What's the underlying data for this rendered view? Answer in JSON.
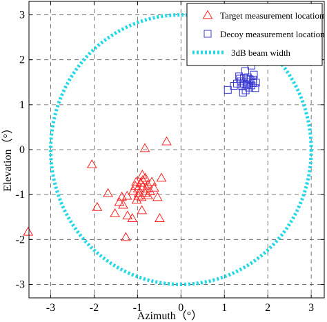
{
  "chart_data": {
    "type": "scatter",
    "title": "",
    "xlabel": "Azimuth（°）",
    "ylabel": "Elevation（°）",
    "xlim": [
      -3.5,
      3.3
    ],
    "ylim": [
      -3.3,
      3.3
    ],
    "xticks": [
      -3,
      -2,
      -1,
      0,
      1,
      2,
      3
    ],
    "yticks": [
      -3,
      -2,
      -1,
      0,
      1,
      2,
      3
    ],
    "grid": true,
    "grid_style": "dashed",
    "legend_position": "top-right",
    "series": [
      {
        "name": "Target measurement location",
        "marker": "triangle",
        "color": "#ff2020",
        "points": [
          [
            -3.52,
            -1.83
          ],
          [
            -2.05,
            -0.33
          ],
          [
            -1.68,
            -0.97
          ],
          [
            -1.93,
            -1.28
          ],
          [
            -1.42,
            -1.17
          ],
          [
            -1.52,
            -1.42
          ],
          [
            -1.33,
            -1.23
          ],
          [
            -1.27,
            -1.95
          ],
          [
            -1.23,
            -1.47
          ],
          [
            -1.12,
            -1.53
          ],
          [
            -1.24,
            -1.03
          ],
          [
            -1.02,
            -1.12
          ],
          [
            -1.1,
            -0.92
          ],
          [
            -0.99,
            -0.87
          ],
          [
            -0.93,
            -0.74
          ],
          [
            -0.87,
            -0.82
          ],
          [
            -0.82,
            -0.63
          ],
          [
            -0.89,
            -0.56
          ],
          [
            -0.76,
            -0.78
          ],
          [
            -0.71,
            -0.93
          ],
          [
            -0.76,
            -1.02
          ],
          [
            -0.91,
            -1.06
          ],
          [
            -0.98,
            -1.03
          ],
          [
            -1.05,
            -0.81
          ],
          [
            -0.82,
            -0.97
          ],
          [
            -0.88,
            -0.68
          ],
          [
            -0.67,
            -0.72
          ],
          [
            -0.62,
            -0.85
          ],
          [
            -0.45,
            -0.63
          ],
          [
            -0.54,
            -1.06
          ],
          [
            -0.9,
            -1.35
          ],
          [
            -0.49,
            -1.53
          ],
          [
            -0.83,
            0.03
          ],
          [
            -0.33,
            0.18
          ],
          [
            -0.97,
            -0.97
          ],
          [
            -1.03,
            -0.72
          ],
          [
            -0.79,
            -0.87
          ],
          [
            -1.36,
            -1.05
          ]
        ]
      },
      {
        "name": "Decoy measurement location",
        "marker": "square",
        "color": "#3838d0",
        "points": [
          [
            1.62,
            1.87
          ],
          [
            1.68,
            1.67
          ],
          [
            1.48,
            1.75
          ],
          [
            1.54,
            1.61
          ],
          [
            1.6,
            1.55
          ],
          [
            1.44,
            1.47
          ],
          [
            1.53,
            1.43
          ],
          [
            1.57,
            1.38
          ],
          [
            1.49,
            1.32
          ],
          [
            1.41,
            1.41
          ],
          [
            1.38,
            1.52
          ],
          [
            1.34,
            1.63
          ],
          [
            1.53,
            1.5
          ],
          [
            1.62,
            1.43
          ],
          [
            1.66,
            1.56
          ],
          [
            1.73,
            1.49
          ],
          [
            1.71,
            1.37
          ],
          [
            1.43,
            1.27
          ],
          [
            1.36,
            1.58
          ],
          [
            1.29,
            1.47
          ],
          [
            1.57,
            1.57
          ],
          [
            1.66,
            1.48
          ],
          [
            1.51,
            1.45
          ],
          [
            1.08,
            1.33
          ],
          [
            1.22,
            1.42
          ],
          [
            1.45,
            1.6
          ]
        ]
      },
      {
        "name": "3dB beam width",
        "type": "circle",
        "style": "dotted",
        "color": "#22d8e8",
        "center": [
          0,
          0
        ],
        "radius": 3
      }
    ]
  }
}
